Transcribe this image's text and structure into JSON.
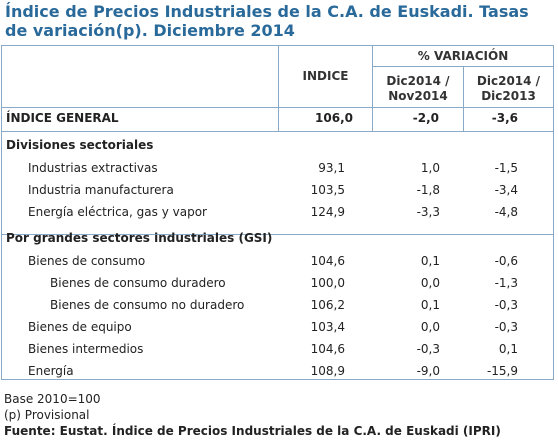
{
  "title": "Índice de Precios Industriales de la C.A. de Euskadi. Tasas de variación(p). Diciembre 2014",
  "headers": {
    "indice": "INDICE",
    "variacion": "% VARIACIÓN",
    "col1_line1": "Dic2014 /",
    "col1_line2": "Nov2014",
    "col2_line1": "Dic2014 /",
    "col2_line2": "Dic2013"
  },
  "rows": [
    {
      "label": "ÍNDICE GENERAL",
      "indice": "106,0",
      "v1": "-2,0",
      "v2": "-3,6"
    },
    {
      "label": "Divisiones sectoriales",
      "indice": "",
      "v1": "",
      "v2": ""
    },
    {
      "label": "Industrias extractivas",
      "indice": "93,1",
      "v1": "1,0",
      "v2": "-1,5"
    },
    {
      "label": "Industria manufacturera",
      "indice": "103,5",
      "v1": "-1,8",
      "v2": "-3,4"
    },
    {
      "label": "Energía eléctrica, gas y vapor",
      "indice": "124,9",
      "v1": "-3,3",
      "v2": "-4,8"
    },
    {
      "label": "Por grandes sectores industriales (GSI)",
      "indice": "",
      "v1": "",
      "v2": ""
    },
    {
      "label": "Bienes de consumo",
      "indice": "104,6",
      "v1": "0,1",
      "v2": "-0,6"
    },
    {
      "label": "Bienes de consumo duradero",
      "indice": "100,0",
      "v1": "0,0",
      "v2": "-1,3"
    },
    {
      "label": "Bienes de consumo no duradero",
      "indice": "106,2",
      "v1": "0,1",
      "v2": "-0,3"
    },
    {
      "label": "Bienes de equipo",
      "indice": "103,4",
      "v1": "0,0",
      "v2": "-0,3"
    },
    {
      "label": "Bienes intermedios",
      "indice": "104,6",
      "v1": "-0,3",
      "v2": "0,1"
    },
    {
      "label": "Energía",
      "indice": "108,9",
      "v1": "-9,0",
      "v2": "-15,9"
    }
  ],
  "notes": {
    "base": "Base 2010=100",
    "provisional": "(p) Provisional",
    "source": "Fuente: Eustat. Índice de Precios Industriales de la C.A. de Euskadi (IPRI)"
  }
}
